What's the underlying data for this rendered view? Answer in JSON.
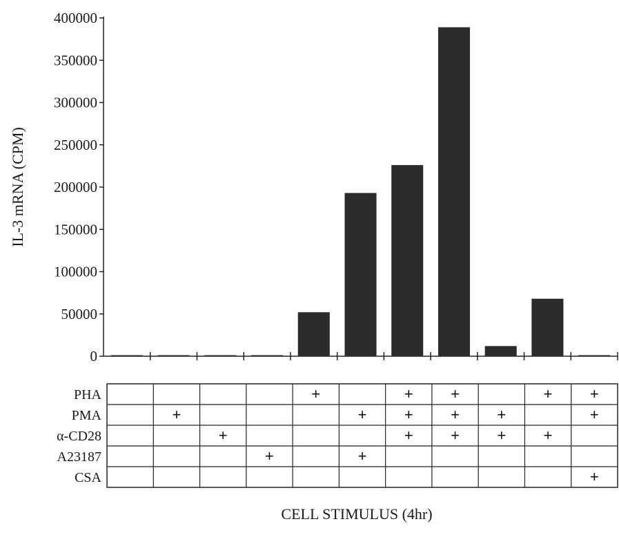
{
  "chart_data": {
    "type": "bar",
    "title": "",
    "ylabel": "IL-3 mRNA (CPM)",
    "xlabel": "CELL STIMULUS (4hr)",
    "ylim": [
      0,
      400000
    ],
    "yticks": [
      0,
      50000,
      100000,
      150000,
      200000,
      250000,
      300000,
      350000,
      400000
    ],
    "ytick_labels": [
      "0",
      "50000",
      "100000",
      "150000",
      "200000",
      "250000",
      "300000",
      "350000",
      "400000"
    ],
    "values": [
      0,
      0,
      0,
      0,
      52000,
      193000,
      226000,
      389000,
      12000,
      68000,
      0
    ],
    "bar_color": "#2b2b2b",
    "grid": false,
    "conditions": [
      {
        "label": "PHA",
        "marks": [
          "",
          "",
          "",
          "",
          "+",
          "",
          "+",
          "+",
          "",
          "+",
          "+"
        ]
      },
      {
        "label": "PMA",
        "marks": [
          "",
          "+",
          "",
          "",
          "",
          "+",
          "+",
          "+",
          "+",
          "",
          "+"
        ]
      },
      {
        "label": "α-CD28",
        "marks": [
          "",
          "",
          "+",
          "",
          "",
          "",
          "+",
          "+",
          "+",
          "+",
          ""
        ]
      },
      {
        "label": "A23187",
        "marks": [
          "",
          "",
          "",
          "+",
          "",
          "+",
          "",
          "",
          "",
          "",
          ""
        ]
      },
      {
        "label": "CSA",
        "marks": [
          "",
          "",
          "",
          "",
          "",
          "",
          "",
          "",
          "",
          "",
          "+"
        ]
      }
    ]
  }
}
